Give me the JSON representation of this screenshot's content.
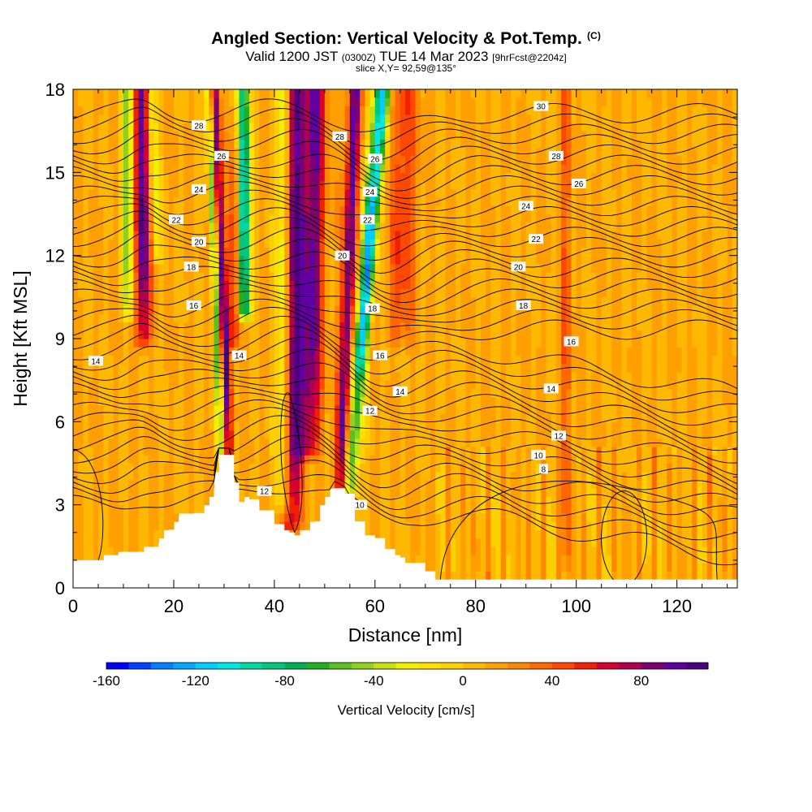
{
  "header": {
    "title": "Angled Section: Vertical Velocity & Pot.Temp.",
    "title_unit": "(C)",
    "valid_prefix": "Valid 1200 JST",
    "valid_utc": "(0300Z)",
    "valid_date": "TUE 14 Mar 2023",
    "valid_fcst": "[9hrFcst@2204z]",
    "slice": "slice X,Y= 92,59@135°"
  },
  "chart_data": {
    "type": "heatmap",
    "xlabel": "Distance [nm]",
    "ylabel": "Height [Kft MSL]",
    "xlim": [
      0,
      132
    ],
    "ylim": [
      0,
      18
    ],
    "x_ticks": [
      0,
      20,
      40,
      60,
      80,
      100,
      120
    ],
    "y_ticks": [
      0,
      3,
      6,
      9,
      12,
      15,
      18
    ],
    "grid": false,
    "background_value": 10,
    "updraft_bands": [
      {
        "x": 14,
        "xtop": 13.5,
        "amp": 95,
        "width": 1.5,
        "ybot": 9
      },
      {
        "x": 31,
        "xtop": 28,
        "amp": 90,
        "width": 1.0,
        "ybot": 4.8
      },
      {
        "x": 32,
        "xtop": 33,
        "amp": 70,
        "width": 1.2,
        "ybot": 9
      },
      {
        "x": 43.5,
        "xtop": 44,
        "amp": 95,
        "width": 1.8,
        "ybot": 2.3
      },
      {
        "x": 47,
        "xtop": 48,
        "amp": 85,
        "width": 2.2,
        "ybot": 5
      },
      {
        "x": 53,
        "xtop": 56,
        "amp": 85,
        "width": 1.3,
        "ybot": 2.2
      },
      {
        "x": 65,
        "xtop": 66,
        "amp": 40,
        "width": 2.5,
        "ybot": 9
      },
      {
        "x": 98,
        "xtop": 98,
        "amp": 45,
        "width": 0.7,
        "ybot": 0.8
      }
    ],
    "downdraft_bands": [
      {
        "x": 11,
        "xtop": 11,
        "amp": -60,
        "width": 1.2,
        "ybot": 10
      },
      {
        "x": 16.5,
        "xtop": 15.5,
        "amp": -45,
        "width": 1.0,
        "ybot": 12
      },
      {
        "x": 29.5,
        "xtop": 27,
        "amp": -75,
        "width": 0.8,
        "ybot": 4.8
      },
      {
        "x": 34,
        "xtop": 33.5,
        "amp": -150,
        "width": 1.3,
        "ybot": 10
      },
      {
        "x": 42,
        "xtop": 42,
        "amp": -60,
        "width": 1.4,
        "ybot": 3
      },
      {
        "x": 54.5,
        "xtop": 61,
        "amp": -80,
        "width": 1.5,
        "ybot": 2.5
      },
      {
        "x": 57,
        "xtop": 62,
        "amp": -60,
        "width": 1.2,
        "ybot": 8
      }
    ],
    "terrain_profile": {
      "x": [
        0,
        5,
        9,
        13,
        17,
        19,
        21,
        24,
        26,
        28,
        29,
        30,
        31,
        32,
        33,
        35,
        37,
        40,
        42,
        44,
        46,
        48,
        50,
        52,
        54,
        56,
        58,
        60,
        62,
        64,
        66,
        70,
        72,
        80,
        100,
        120,
        132
      ],
      "ft": [
        1.0,
        1.0,
        1.3,
        1.3,
        1.6,
        2.1,
        2.6,
        2.7,
        2.6,
        3.6,
        4.8,
        4.8,
        4.8,
        3.8,
        3.1,
        3.2,
        2.8,
        2.3,
        2.0,
        1.9,
        2.0,
        2.4,
        3.0,
        3.6,
        3.4,
        2.4,
        1.9,
        1.8,
        1.4,
        1.1,
        0.9,
        0.6,
        0.3,
        0.3,
        0.3,
        0.3,
        0.3
      ]
    },
    "isentropes": [
      {
        "value": 14,
        "label": "14"
      },
      {
        "value": 16,
        "label": "16"
      },
      {
        "value": 18,
        "label": "18"
      },
      {
        "value": 20,
        "label": "20"
      },
      {
        "value": 22,
        "label": "22"
      },
      {
        "value": 24,
        "label": "24"
      },
      {
        "value": 26,
        "label": "26"
      },
      {
        "value": 28,
        "label": "28"
      },
      {
        "value": 30,
        "label": "30"
      }
    ],
    "low_contour_labels": [
      "12",
      "10",
      "8",
      "12",
      "10"
    ],
    "isentrope_labels": [
      {
        "text": "14",
        "x": 4.5,
        "y": 8.2
      },
      {
        "text": "16",
        "x": 24,
        "y": 10.2
      },
      {
        "text": "18",
        "x": 23.5,
        "y": 11.6
      },
      {
        "text": "20",
        "x": 25,
        "y": 12.5
      },
      {
        "text": "22",
        "x": 20.5,
        "y": 13.3
      },
      {
        "text": "24",
        "x": 25,
        "y": 14.4
      },
      {
        "text": "26",
        "x": 29.5,
        "y": 15.6
      },
      {
        "text": "28",
        "x": 25,
        "y": 16.7
      },
      {
        "text": "28",
        "x": 53,
        "y": 16.3
      },
      {
        "text": "26",
        "x": 60,
        "y": 15.5
      },
      {
        "text": "24",
        "x": 59,
        "y": 14.3
      },
      {
        "text": "22",
        "x": 58.5,
        "y": 13.3
      },
      {
        "text": "20",
        "x": 53.5,
        "y": 12.0
      },
      {
        "text": "18",
        "x": 59.5,
        "y": 10.1
      },
      {
        "text": "16",
        "x": 61,
        "y": 8.4
      },
      {
        "text": "14",
        "x": 65,
        "y": 7.1
      },
      {
        "text": "12",
        "x": 59,
        "y": 6.4
      },
      {
        "text": "10",
        "x": 57,
        "y": 3.0
      },
      {
        "text": "12",
        "x": 38,
        "y": 3.5
      },
      {
        "text": "14",
        "x": 33,
        "y": 8.4
      },
      {
        "text": "30",
        "x": 93,
        "y": 17.4
      },
      {
        "text": "28",
        "x": 96,
        "y": 15.6
      },
      {
        "text": "26",
        "x": 100.5,
        "y": 14.6
      },
      {
        "text": "24",
        "x": 90,
        "y": 13.8
      },
      {
        "text": "22",
        "x": 92,
        "y": 12.6
      },
      {
        "text": "20",
        "x": 88.5,
        "y": 11.6
      },
      {
        "text": "18",
        "x": 89.5,
        "y": 10.2
      },
      {
        "text": "16",
        "x": 99,
        "y": 8.9
      },
      {
        "text": "14",
        "x": 95,
        "y": 7.2
      },
      {
        "text": "12",
        "x": 96.5,
        "y": 5.5
      },
      {
        "text": "10",
        "x": 92.5,
        "y": 4.8
      },
      {
        "text": "8",
        "x": 93.5,
        "y": 4.3
      }
    ],
    "colorbar": {
      "label": "Vertical Velocity [cm/s]",
      "min": -160,
      "max": 110,
      "step": 10,
      "ticks": [
        -160,
        -120,
        -80,
        -40,
        0,
        40,
        80
      ],
      "colors": [
        "#0000ff",
        "#0040ff",
        "#0080ff",
        "#00a8ff",
        "#00ccff",
        "#00e6e6",
        "#00d8a0",
        "#00c87a",
        "#00b050",
        "#20b020",
        "#58c020",
        "#90d020",
        "#c8e010",
        "#f0f000",
        "#ffe000",
        "#ffd000",
        "#ffb800",
        "#ffa000",
        "#ff8800",
        "#ff6800",
        "#ff4800",
        "#f02000",
        "#d80030",
        "#b00050",
        "#800070",
        "#6000a0",
        "#4b0082"
      ]
    }
  }
}
